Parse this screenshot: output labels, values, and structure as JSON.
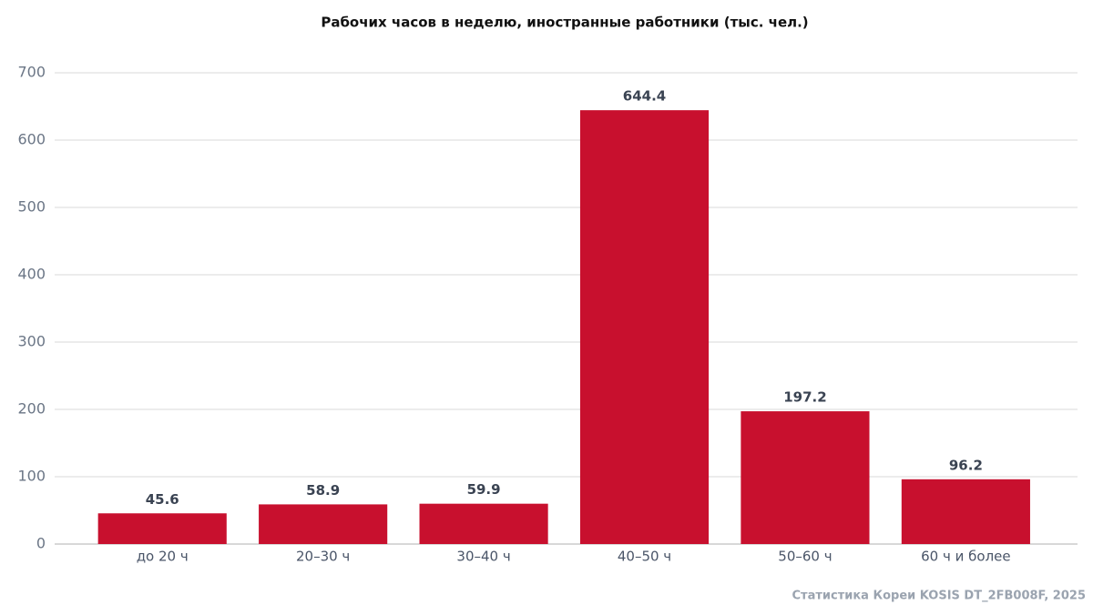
{
  "chart_data": {
    "type": "bar",
    "title": "Рабочих часов в неделю, иностранные работники (тыс. чел.)",
    "categories": [
      "до 20 ч",
      "20–30 ч",
      "30–40 ч",
      "40–50 ч",
      "50–60 ч",
      "60 ч и более"
    ],
    "values": [
      45.6,
      58.9,
      59.9,
      644.4,
      197.2,
      96.2
    ],
    "color": "#c8102e",
    "ylim": [
      0,
      700
    ],
    "yticks": [
      0,
      100,
      200,
      300,
      400,
      500,
      600,
      700
    ],
    "grid": true,
    "source": "Статистика Кореи KOSIS DT_2FB008F, 2025"
  }
}
